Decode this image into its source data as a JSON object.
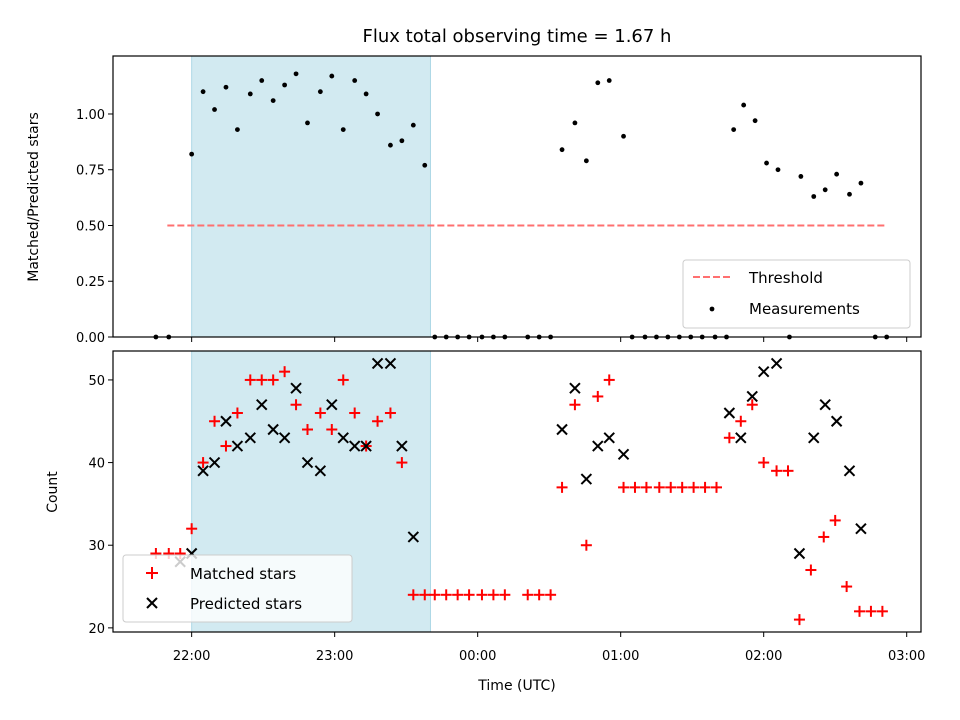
{
  "chart_data": {
    "title": "Flux total observing time = 1.67 h",
    "xlabel": "Time (UTC)",
    "x_unit": "hours since 00:00 UTC (negative = previous day)",
    "xlim": [
      -2.55,
      3.1
    ],
    "xticks": [
      {
        "value": -2,
        "label": "22:00"
      },
      {
        "value": -1,
        "label": "23:00"
      },
      {
        "value": 0,
        "label": "00:00"
      },
      {
        "value": 1,
        "label": "01:00"
      },
      {
        "value": 2,
        "label": "02:00"
      },
      {
        "value": 3,
        "label": "03:00"
      }
    ],
    "shaded_interval": {
      "x": [
        -2.0,
        -0.33
      ],
      "color": "#add8e6"
    },
    "panels": [
      {
        "id": "ratio",
        "type": "scatter",
        "ylabel": "Matched/Predicted stars",
        "ylim": [
          0,
          1.26
        ],
        "yticks": [
          0.0,
          0.25,
          0.5,
          0.75,
          1.0
        ],
        "ytick_labels": [
          "0.00",
          "0.25",
          "0.50",
          "0.75",
          "1.00"
        ],
        "legend_position": "lower-right",
        "series": [
          {
            "name": "Threshold",
            "kind": "dashed-line",
            "color": "#ff7070",
            "x": [
              -2.17,
              2.85
            ],
            "y": [
              0.5,
              0.5
            ]
          },
          {
            "name": "Measurements",
            "kind": "dots",
            "color": "#000000",
            "points": [
              [
                -2.25,
                0.0
              ],
              [
                -2.16,
                0.0
              ],
              [
                -2.0,
                0.82
              ],
              [
                -1.92,
                1.1
              ],
              [
                -1.84,
                1.02
              ],
              [
                -1.76,
                1.12
              ],
              [
                -1.68,
                0.93
              ],
              [
                -1.59,
                1.09
              ],
              [
                -1.51,
                1.15
              ],
              [
                -1.43,
                1.06
              ],
              [
                -1.35,
                1.13
              ],
              [
                -1.27,
                1.18
              ],
              [
                -1.19,
                0.96
              ],
              [
                -1.1,
                1.1
              ],
              [
                -1.02,
                1.17
              ],
              [
                -0.94,
                0.93
              ],
              [
                -0.86,
                1.15
              ],
              [
                -0.78,
                1.09
              ],
              [
                -0.7,
                1.0
              ],
              [
                -0.61,
                0.86
              ],
              [
                -0.53,
                0.88
              ],
              [
                -0.45,
                0.95
              ],
              [
                -0.37,
                0.77
              ],
              [
                -0.3,
                0.0
              ],
              [
                -0.22,
                0.0
              ],
              [
                -0.14,
                0.0
              ],
              [
                -0.06,
                0.0
              ],
              [
                0.03,
                0.0
              ],
              [
                0.11,
                0.0
              ],
              [
                0.19,
                0.0
              ],
              [
                0.35,
                0.0
              ],
              [
                0.43,
                0.0
              ],
              [
                0.51,
                0.0
              ],
              [
                0.59,
                0.84
              ],
              [
                0.68,
                0.96
              ],
              [
                0.76,
                0.79
              ],
              [
                0.84,
                1.14
              ],
              [
                0.92,
                1.15
              ],
              [
                1.02,
                0.9
              ],
              [
                1.08,
                0.0
              ],
              [
                1.17,
                0.0
              ],
              [
                1.25,
                0.0
              ],
              [
                1.33,
                0.0
              ],
              [
                1.41,
                0.0
              ],
              [
                1.49,
                0.0
              ],
              [
                1.57,
                0.0
              ],
              [
                1.66,
                0.0
              ],
              [
                1.74,
                0.0
              ],
              [
                1.79,
                0.93
              ],
              [
                1.86,
                1.04
              ],
              [
                1.94,
                0.97
              ],
              [
                2.02,
                0.78
              ],
              [
                2.1,
                0.75
              ],
              [
                2.18,
                0.0
              ],
              [
                2.26,
                0.72
              ],
              [
                2.35,
                0.63
              ],
              [
                2.43,
                0.66
              ],
              [
                2.51,
                0.73
              ],
              [
                2.6,
                0.64
              ],
              [
                2.68,
                0.69
              ],
              [
                2.78,
                0.0
              ],
              [
                2.86,
                0.0
              ]
            ]
          }
        ]
      },
      {
        "id": "count",
        "type": "scatter",
        "ylabel": "Count",
        "ylim": [
          19.5,
          53.5
        ],
        "yticks": [
          20,
          30,
          40,
          50
        ],
        "ytick_labels": [
          "20",
          "30",
          "40",
          "50"
        ],
        "legend_position": "lower-left",
        "series": [
          {
            "name": "Matched stars",
            "marker": "+",
            "color": "#ff0000",
            "points": [
              [
                -2.25,
                29
              ],
              [
                -2.16,
                29
              ],
              [
                -2.08,
                29
              ],
              [
                -2.0,
                32
              ],
              [
                -1.92,
                40
              ],
              [
                -1.84,
                45
              ],
              [
                -1.76,
                42
              ],
              [
                -1.68,
                46
              ],
              [
                -1.59,
                50
              ],
              [
                -1.51,
                50
              ],
              [
                -1.43,
                50
              ],
              [
                -1.35,
                51
              ],
              [
                -1.27,
                47
              ],
              [
                -1.19,
                44
              ],
              [
                -1.1,
                46
              ],
              [
                -1.02,
                44
              ],
              [
                -0.94,
                50
              ],
              [
                -0.86,
                46
              ],
              [
                -0.78,
                42
              ],
              [
                -0.7,
                45
              ],
              [
                -0.61,
                46
              ],
              [
                -0.53,
                40
              ],
              [
                -0.45,
                24
              ],
              [
                -0.37,
                24
              ],
              [
                -0.3,
                24
              ],
              [
                -0.22,
                24
              ],
              [
                -0.14,
                24
              ],
              [
                -0.06,
                24
              ],
              [
                0.03,
                24
              ],
              [
                0.11,
                24
              ],
              [
                0.19,
                24
              ],
              [
                0.35,
                24
              ],
              [
                0.43,
                24
              ],
              [
                0.51,
                24
              ],
              [
                0.59,
                37
              ],
              [
                0.68,
                47
              ],
              [
                0.76,
                30
              ],
              [
                0.84,
                48
              ],
              [
                0.92,
                50
              ],
              [
                1.02,
                37
              ],
              [
                1.1,
                37
              ],
              [
                1.18,
                37
              ],
              [
                1.27,
                37
              ],
              [
                1.35,
                37
              ],
              [
                1.43,
                37
              ],
              [
                1.51,
                37
              ],
              [
                1.59,
                37
              ],
              [
                1.67,
                37
              ],
              [
                1.76,
                43
              ],
              [
                1.84,
                45
              ],
              [
                1.92,
                47
              ],
              [
                2.0,
                40
              ],
              [
                2.09,
                39
              ],
              [
                2.17,
                39
              ],
              [
                2.25,
                21
              ],
              [
                2.33,
                27
              ],
              [
                2.42,
                31
              ],
              [
                2.5,
                33
              ],
              [
                2.58,
                25
              ],
              [
                2.67,
                22
              ],
              [
                2.75,
                22
              ],
              [
                2.83,
                22
              ]
            ]
          },
          {
            "name": "Predicted stars",
            "marker": "x",
            "color": "#000000",
            "points": [
              [
                -2.08,
                28
              ],
              [
                -2.0,
                29
              ],
              [
                -1.92,
                39
              ],
              [
                -1.84,
                40
              ],
              [
                -1.76,
                45
              ],
              [
                -1.68,
                42
              ],
              [
                -1.59,
                43
              ],
              [
                -1.51,
                47
              ],
              [
                -1.43,
                44
              ],
              [
                -1.35,
                43
              ],
              [
                -1.27,
                49
              ],
              [
                -1.19,
                40
              ],
              [
                -1.1,
                39
              ],
              [
                -1.02,
                47
              ],
              [
                -0.94,
                43
              ],
              [
                -0.86,
                42
              ],
              [
                -0.78,
                42
              ],
              [
                -0.7,
                52
              ],
              [
                -0.61,
                52
              ],
              [
                -0.53,
                42
              ],
              [
                -0.45,
                31
              ],
              [
                0.59,
                44
              ],
              [
                0.68,
                49
              ],
              [
                0.76,
                38
              ],
              [
                0.84,
                42
              ],
              [
                0.92,
                43
              ],
              [
                1.02,
                41
              ],
              [
                1.76,
                46
              ],
              [
                1.84,
                43
              ],
              [
                1.92,
                48
              ],
              [
                2.0,
                51
              ],
              [
                2.09,
                52
              ],
              [
                2.25,
                29
              ],
              [
                2.35,
                43
              ],
              [
                2.43,
                47
              ],
              [
                2.51,
                45
              ],
              [
                2.6,
                39
              ],
              [
                2.68,
                32
              ]
            ]
          }
        ]
      }
    ]
  }
}
